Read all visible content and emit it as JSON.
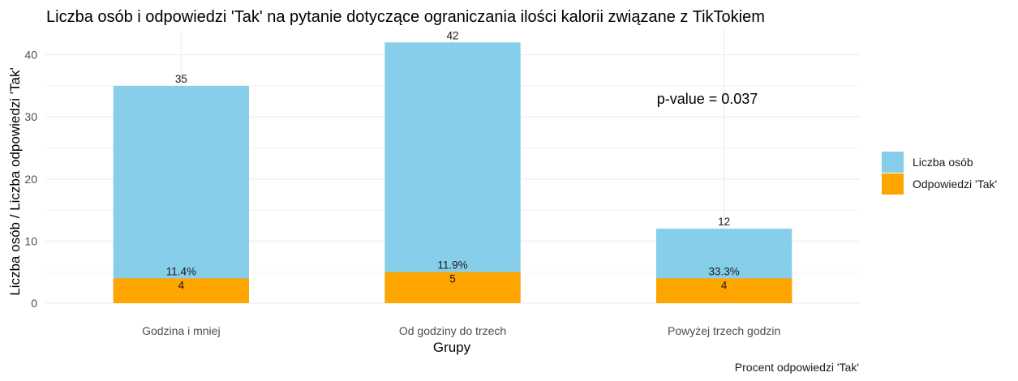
{
  "chart_data": {
    "type": "bar",
    "title": "Liczba osób i odpowiedzi 'Tak' na pytanie dotyczące ograniczania ilości kalorii związane z TikTokiem",
    "xlabel": "Grupy",
    "ylabel": "Liczba osób / Liczba odpowiedzi 'Tak'",
    "caption": "Procent odpowiedzi 'Tak'",
    "annotation": "p-value = 0.037",
    "categories": [
      "Godzina i mniej",
      "Od godziny do trzech",
      "Powyżej trzech godzin"
    ],
    "ylim": [
      0,
      44
    ],
    "yticks": [
      0,
      10,
      20,
      30,
      40
    ],
    "grid": true,
    "legend_position": "right",
    "series": [
      {
        "name": "Liczba osób",
        "values": [
          35,
          42,
          12
        ],
        "color": "#87CEEB",
        "labels": [
          "35",
          "42",
          "12"
        ]
      },
      {
        "name": "Odpowiedzi 'Tak'",
        "values": [
          4,
          5,
          4
        ],
        "color": "#FFA500",
        "labels": [
          "4",
          "5",
          "4"
        ]
      }
    ],
    "percent_labels": [
      "11.4%",
      "11.9%",
      "33.3%"
    ]
  }
}
